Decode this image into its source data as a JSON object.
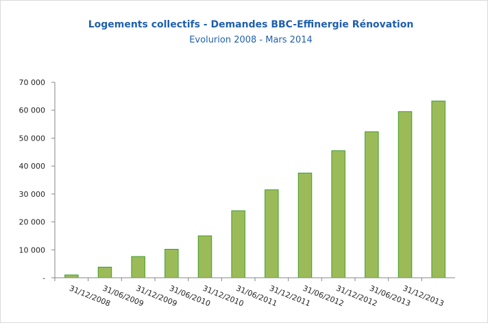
{
  "chart_data": {
    "type": "bar",
    "title": "Logements collectifs - Demandes BBC-Effinergie Rénovation",
    "subtitle": "Evolurion 2008 - Mars 2014",
    "categories": [
      "31/12/2008",
      "31/06/2009",
      "31/12/2009",
      "31/06/2010",
      "31/12/2010",
      "31/06/2011",
      "31/12/2011",
      "31/06/2012",
      "31/12/2012",
      "31/06/2013",
      "31/12/2013",
      null
    ],
    "values": [
      1000,
      3800,
      7600,
      10200,
      15000,
      24000,
      31500,
      37500,
      45500,
      52300,
      59500,
      63300
    ],
    "color": "#9bbb59",
    "edge_color": "#3f9a2a",
    "ylim": [
      0,
      70000
    ],
    "yticks": [
      {
        "value": 0,
        "label": "-"
      },
      {
        "value": 10000,
        "label": "10 000"
      },
      {
        "value": 20000,
        "label": "20 000"
      },
      {
        "value": 30000,
        "label": "30 000"
      },
      {
        "value": 40000,
        "label": "40 000"
      },
      {
        "value": 50000,
        "label": "50 000"
      },
      {
        "value": 60000,
        "label": "60 000"
      },
      {
        "value": 70000,
        "label": "70 000"
      }
    ],
    "grid": false
  }
}
